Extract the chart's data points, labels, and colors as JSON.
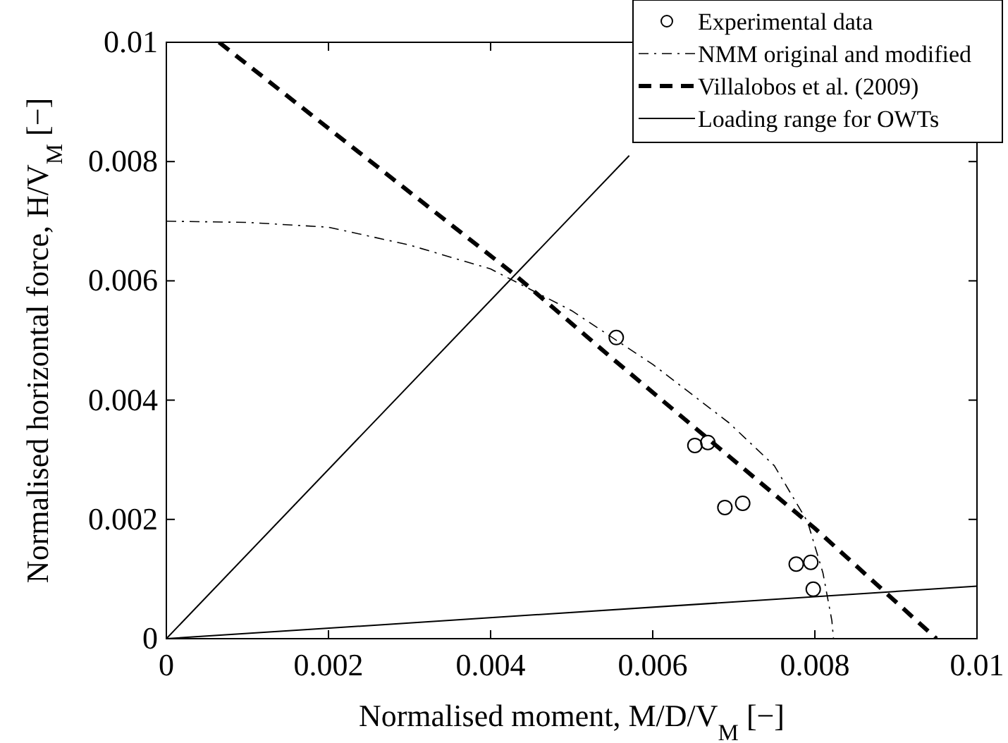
{
  "chart_data": {
    "type": "scatter",
    "xlabel": "Normalised moment, M/D/V$_{M}$ [−]",
    "ylabel": "Normalised horizontal force, H/V$_{M}$ [−]",
    "xlim": [
      0,
      0.01
    ],
    "ylim": [
      0,
      0.01
    ],
    "xticks": [
      0,
      0.002,
      0.004,
      0.006,
      0.008,
      0.01
    ],
    "yticks": [
      0,
      0.002,
      0.004,
      0.006,
      0.008,
      0.01
    ],
    "grid": false,
    "legend": "top right",
    "series": [
      {
        "name": "Experimental data",
        "marker": "circle",
        "color": "#000000",
        "x": [
          0.00555,
          0.00652,
          0.00668,
          0.00689,
          0.00711,
          0.00777,
          0.00795,
          0.00798
        ],
        "values": [
          0.00505,
          0.00324,
          0.00329,
          0.0022,
          0.00227,
          0.00125,
          0.00128,
          0.00083
        ]
      },
      {
        "name": "NMM original and modified",
        "type": "line",
        "line_style": "dashdot",
        "color": "#000000",
        "x": [
          0,
          0.001,
          0.002,
          0.003,
          0.004,
          0.005,
          0.006,
          0.00694,
          0.0075,
          0.00791,
          0.0081,
          0.00821,
          0.00823
        ],
        "values": [
          0.007,
          0.00698,
          0.0069,
          0.0066,
          0.0062,
          0.0055,
          0.0046,
          0.00362,
          0.0029,
          0.00196,
          0.0011,
          0.0003,
          0
        ]
      },
      {
        "name": "Villalobos et al. (2009)",
        "type": "line",
        "line_style": "dashed",
        "color": "#000000",
        "x": [
          0.00065,
          0.0043,
          0.0055,
          0.008,
          0.0095
        ],
        "values": [
          0.01,
          0.0061,
          0.0047,
          0.00185,
          0
        ]
      },
      {
        "name": "Loading range for OWTs",
        "type": "line",
        "line_style": "solid",
        "color": "#000000",
        "x": [
          0,
          0.00571
        ],
        "values": [
          0,
          0.0081
        ]
      },
      {
        "type": "line",
        "line_style": "solid",
        "color": "#000000",
        "x": [
          0,
          0.01
        ],
        "values": [
          0,
          0.00088
        ]
      }
    ]
  }
}
